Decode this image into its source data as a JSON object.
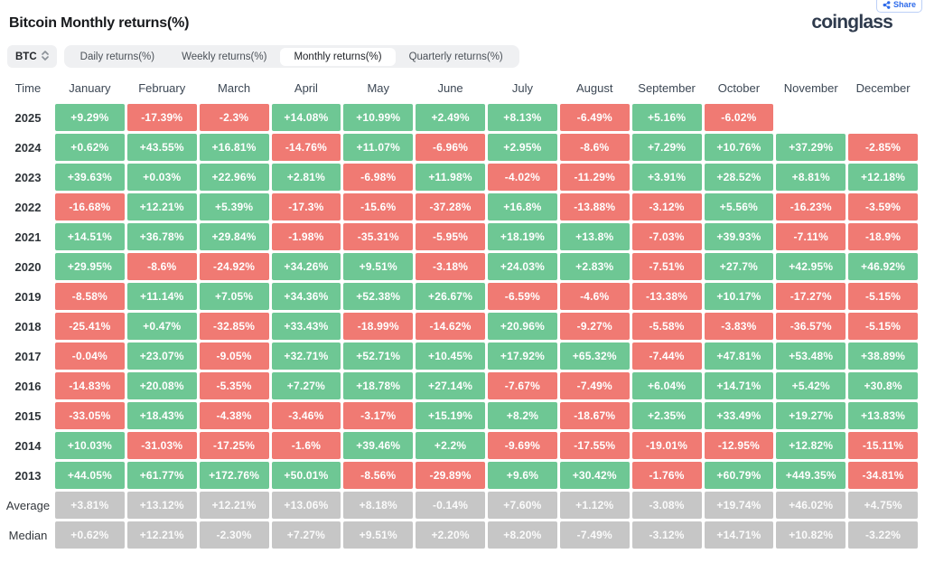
{
  "page": {
    "title": "Bitcoin Monthly returns(%)",
    "brand": "coinglass",
    "share_label": "Share"
  },
  "controls": {
    "symbol_select": "BTC",
    "tabs": [
      {
        "label": "Daily returns(%)",
        "active": false
      },
      {
        "label": "Weekly returns(%)",
        "active": false
      },
      {
        "label": "Monthly returns(%)",
        "active": true
      },
      {
        "label": "Quarterly returns(%)",
        "active": false
      }
    ]
  },
  "colors": {
    "positive": "#6ec794",
    "negative": "#f07a73",
    "neutral": "#c6c6c6",
    "accent_blue": "#2e6bea"
  },
  "table": {
    "columns": [
      "Time",
      "January",
      "February",
      "March",
      "April",
      "May",
      "June",
      "July",
      "August",
      "September",
      "October",
      "November",
      "December"
    ],
    "rows": [
      {
        "label": "2025",
        "cells": [
          [
            "+9.29%",
            "pos"
          ],
          [
            "-17.39%",
            "neg"
          ],
          [
            "-2.3%",
            "neg"
          ],
          [
            "+14.08%",
            "pos"
          ],
          [
            "+10.99%",
            "pos"
          ],
          [
            "+2.49%",
            "pos"
          ],
          [
            "+8.13%",
            "pos"
          ],
          [
            "-6.49%",
            "neg"
          ],
          [
            "+5.16%",
            "pos"
          ],
          [
            "-6.02%",
            "neg"
          ],
          null,
          null
        ]
      },
      {
        "label": "2024",
        "cells": [
          [
            "+0.62%",
            "pos"
          ],
          [
            "+43.55%",
            "pos"
          ],
          [
            "+16.81%",
            "pos"
          ],
          [
            "-14.76%",
            "neg"
          ],
          [
            "+11.07%",
            "pos"
          ],
          [
            "-6.96%",
            "neg"
          ],
          [
            "+2.95%",
            "pos"
          ],
          [
            "-8.6%",
            "neg"
          ],
          [
            "+7.29%",
            "pos"
          ],
          [
            "+10.76%",
            "pos"
          ],
          [
            "+37.29%",
            "pos"
          ],
          [
            "-2.85%",
            "neg"
          ]
        ]
      },
      {
        "label": "2023",
        "cells": [
          [
            "+39.63%",
            "pos"
          ],
          [
            "+0.03%",
            "pos"
          ],
          [
            "+22.96%",
            "pos"
          ],
          [
            "+2.81%",
            "pos"
          ],
          [
            "-6.98%",
            "neg"
          ],
          [
            "+11.98%",
            "pos"
          ],
          [
            "-4.02%",
            "neg"
          ],
          [
            "-11.29%",
            "neg"
          ],
          [
            "+3.91%",
            "pos"
          ],
          [
            "+28.52%",
            "pos"
          ],
          [
            "+8.81%",
            "pos"
          ],
          [
            "+12.18%",
            "pos"
          ]
        ]
      },
      {
        "label": "2022",
        "cells": [
          [
            "-16.68%",
            "neg"
          ],
          [
            "+12.21%",
            "pos"
          ],
          [
            "+5.39%",
            "pos"
          ],
          [
            "-17.3%",
            "neg"
          ],
          [
            "-15.6%",
            "neg"
          ],
          [
            "-37.28%",
            "neg"
          ],
          [
            "+16.8%",
            "pos"
          ],
          [
            "-13.88%",
            "neg"
          ],
          [
            "-3.12%",
            "neg"
          ],
          [
            "+5.56%",
            "pos"
          ],
          [
            "-16.23%",
            "neg"
          ],
          [
            "-3.59%",
            "neg"
          ]
        ]
      },
      {
        "label": "2021",
        "cells": [
          [
            "+14.51%",
            "pos"
          ],
          [
            "+36.78%",
            "pos"
          ],
          [
            "+29.84%",
            "pos"
          ],
          [
            "-1.98%",
            "neg"
          ],
          [
            "-35.31%",
            "neg"
          ],
          [
            "-5.95%",
            "neg"
          ],
          [
            "+18.19%",
            "pos"
          ],
          [
            "+13.8%",
            "pos"
          ],
          [
            "-7.03%",
            "neg"
          ],
          [
            "+39.93%",
            "pos"
          ],
          [
            "-7.11%",
            "neg"
          ],
          [
            "-18.9%",
            "neg"
          ]
        ]
      },
      {
        "label": "2020",
        "cells": [
          [
            "+29.95%",
            "pos"
          ],
          [
            "-8.6%",
            "neg"
          ],
          [
            "-24.92%",
            "neg"
          ],
          [
            "+34.26%",
            "pos"
          ],
          [
            "+9.51%",
            "pos"
          ],
          [
            "-3.18%",
            "neg"
          ],
          [
            "+24.03%",
            "pos"
          ],
          [
            "+2.83%",
            "pos"
          ],
          [
            "-7.51%",
            "neg"
          ],
          [
            "+27.7%",
            "pos"
          ],
          [
            "+42.95%",
            "pos"
          ],
          [
            "+46.92%",
            "pos"
          ]
        ]
      },
      {
        "label": "2019",
        "cells": [
          [
            "-8.58%",
            "neg"
          ],
          [
            "+11.14%",
            "pos"
          ],
          [
            "+7.05%",
            "pos"
          ],
          [
            "+34.36%",
            "pos"
          ],
          [
            "+52.38%",
            "pos"
          ],
          [
            "+26.67%",
            "pos"
          ],
          [
            "-6.59%",
            "neg"
          ],
          [
            "-4.6%",
            "neg"
          ],
          [
            "-13.38%",
            "neg"
          ],
          [
            "+10.17%",
            "pos"
          ],
          [
            "-17.27%",
            "neg"
          ],
          [
            "-5.15%",
            "neg"
          ]
        ]
      },
      {
        "label": "2018",
        "cells": [
          [
            "-25.41%",
            "neg"
          ],
          [
            "+0.47%",
            "pos"
          ],
          [
            "-32.85%",
            "neg"
          ],
          [
            "+33.43%",
            "pos"
          ],
          [
            "-18.99%",
            "neg"
          ],
          [
            "-14.62%",
            "neg"
          ],
          [
            "+20.96%",
            "pos"
          ],
          [
            "-9.27%",
            "neg"
          ],
          [
            "-5.58%",
            "neg"
          ],
          [
            "-3.83%",
            "neg"
          ],
          [
            "-36.57%",
            "neg"
          ],
          [
            "-5.15%",
            "neg"
          ]
        ]
      },
      {
        "label": "2017",
        "cells": [
          [
            "-0.04%",
            "neg"
          ],
          [
            "+23.07%",
            "pos"
          ],
          [
            "-9.05%",
            "neg"
          ],
          [
            "+32.71%",
            "pos"
          ],
          [
            "+52.71%",
            "pos"
          ],
          [
            "+10.45%",
            "pos"
          ],
          [
            "+17.92%",
            "pos"
          ],
          [
            "+65.32%",
            "pos"
          ],
          [
            "-7.44%",
            "neg"
          ],
          [
            "+47.81%",
            "pos"
          ],
          [
            "+53.48%",
            "pos"
          ],
          [
            "+38.89%",
            "pos"
          ]
        ]
      },
      {
        "label": "2016",
        "cells": [
          [
            "-14.83%",
            "neg"
          ],
          [
            "+20.08%",
            "pos"
          ],
          [
            "-5.35%",
            "neg"
          ],
          [
            "+7.27%",
            "pos"
          ],
          [
            "+18.78%",
            "pos"
          ],
          [
            "+27.14%",
            "pos"
          ],
          [
            "-7.67%",
            "neg"
          ],
          [
            "-7.49%",
            "neg"
          ],
          [
            "+6.04%",
            "pos"
          ],
          [
            "+14.71%",
            "pos"
          ],
          [
            "+5.42%",
            "pos"
          ],
          [
            "+30.8%",
            "pos"
          ]
        ]
      },
      {
        "label": "2015",
        "cells": [
          [
            "-33.05%",
            "neg"
          ],
          [
            "+18.43%",
            "pos"
          ],
          [
            "-4.38%",
            "neg"
          ],
          [
            "-3.46%",
            "neg"
          ],
          [
            "-3.17%",
            "neg"
          ],
          [
            "+15.19%",
            "pos"
          ],
          [
            "+8.2%",
            "pos"
          ],
          [
            "-18.67%",
            "neg"
          ],
          [
            "+2.35%",
            "pos"
          ],
          [
            "+33.49%",
            "pos"
          ],
          [
            "+19.27%",
            "pos"
          ],
          [
            "+13.83%",
            "pos"
          ]
        ]
      },
      {
        "label": "2014",
        "cells": [
          [
            "+10.03%",
            "pos"
          ],
          [
            "-31.03%",
            "neg"
          ],
          [
            "-17.25%",
            "neg"
          ],
          [
            "-1.6%",
            "neg"
          ],
          [
            "+39.46%",
            "pos"
          ],
          [
            "+2.2%",
            "pos"
          ],
          [
            "-9.69%",
            "neg"
          ],
          [
            "-17.55%",
            "neg"
          ],
          [
            "-19.01%",
            "neg"
          ],
          [
            "-12.95%",
            "neg"
          ],
          [
            "+12.82%",
            "pos"
          ],
          [
            "-15.11%",
            "neg"
          ]
        ]
      },
      {
        "label": "2013",
        "cells": [
          [
            "+44.05%",
            "pos"
          ],
          [
            "+61.77%",
            "pos"
          ],
          [
            "+172.76%",
            "pos"
          ],
          [
            "+50.01%",
            "pos"
          ],
          [
            "-8.56%",
            "neg"
          ],
          [
            "-29.89%",
            "neg"
          ],
          [
            "+9.6%",
            "pos"
          ],
          [
            "+30.42%",
            "pos"
          ],
          [
            "-1.76%",
            "neg"
          ],
          [
            "+60.79%",
            "pos"
          ],
          [
            "+449.35%",
            "pos"
          ],
          [
            "-34.81%",
            "neg"
          ]
        ]
      },
      {
        "label": "Average",
        "cells": [
          [
            "+3.81%",
            "neutral"
          ],
          [
            "+13.12%",
            "neutral"
          ],
          [
            "+12.21%",
            "neutral"
          ],
          [
            "+13.06%",
            "neutral"
          ],
          [
            "+8.18%",
            "neutral"
          ],
          [
            "-0.14%",
            "neutral"
          ],
          [
            "+7.60%",
            "neutral"
          ],
          [
            "+1.12%",
            "neutral"
          ],
          [
            "-3.08%",
            "neutral"
          ],
          [
            "+19.74%",
            "neutral"
          ],
          [
            "+46.02%",
            "neutral"
          ],
          [
            "+4.75%",
            "neutral"
          ]
        ]
      },
      {
        "label": "Median",
        "cells": [
          [
            "+0.62%",
            "neutral"
          ],
          [
            "+12.21%",
            "neutral"
          ],
          [
            "-2.30%",
            "neutral"
          ],
          [
            "+7.27%",
            "neutral"
          ],
          [
            "+9.51%",
            "neutral"
          ],
          [
            "+2.20%",
            "neutral"
          ],
          [
            "+8.20%",
            "neutral"
          ],
          [
            "-7.49%",
            "neutral"
          ],
          [
            "-3.12%",
            "neutral"
          ],
          [
            "+14.71%",
            "neutral"
          ],
          [
            "+10.82%",
            "neutral"
          ],
          [
            "-3.22%",
            "neutral"
          ]
        ]
      }
    ]
  }
}
